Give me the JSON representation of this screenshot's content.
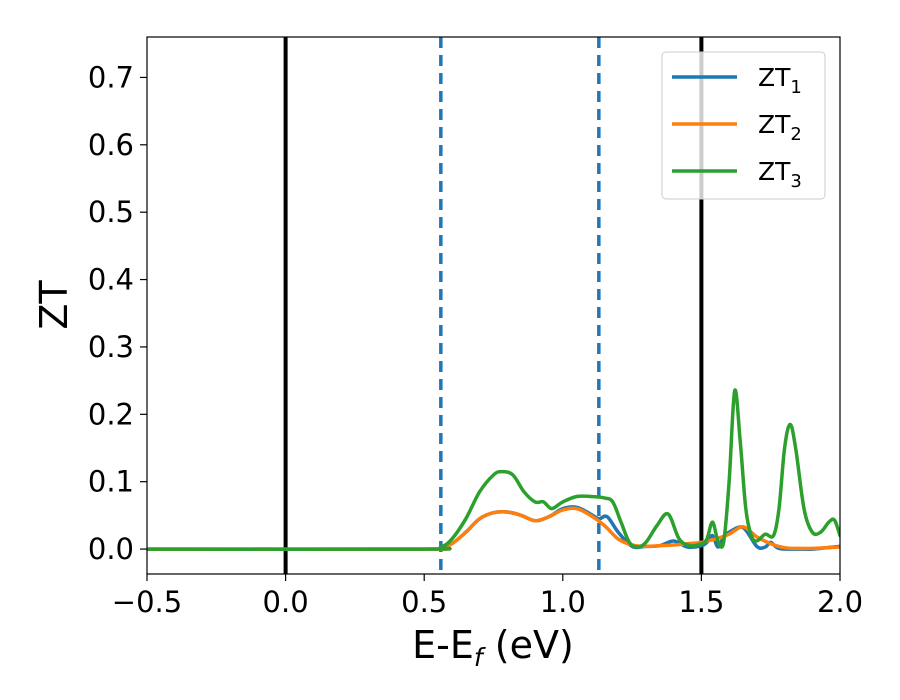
{
  "chart_data": {
    "type": "line",
    "xlabel": {
      "main": "E-E",
      "sub": "f",
      "rest": " (eV)"
    },
    "ylabel": "ZT",
    "xlim": [
      -0.5,
      2.0
    ],
    "ylim": [
      -0.037,
      0.76
    ],
    "x_ticks": [
      -0.5,
      0.0,
      0.5,
      1.0,
      1.5,
      2.0
    ],
    "x_tick_labels": [
      "−0.5",
      "0.0",
      "0.5",
      "1.0",
      "1.5",
      "2.0"
    ],
    "y_ticks": [
      0.0,
      0.1,
      0.2,
      0.3,
      0.4,
      0.5,
      0.6,
      0.7
    ],
    "y_tick_labels": [
      "0.0",
      "0.1",
      "0.2",
      "0.3",
      "0.4",
      "0.5",
      "0.6",
      "0.7"
    ],
    "grid": false,
    "legend_position": "top-right",
    "vertical_lines": [
      {
        "x": 0.0,
        "style": "solid",
        "color": "#000000"
      },
      {
        "x": 0.56,
        "style": "dashed",
        "color": "#1f77b4"
      },
      {
        "x": 1.13,
        "style": "dashed",
        "color": "#1f77b4"
      },
      {
        "x": 1.5,
        "style": "solid",
        "color": "#000000"
      }
    ],
    "series": [
      {
        "name": "ZT",
        "sub": "1",
        "color": "#1f77b4",
        "x": [
          -0.5,
          0.5,
          0.56,
          0.6,
          0.65,
          0.7,
          0.75,
          0.8,
          0.85,
          0.9,
          0.95,
          1.0,
          1.05,
          1.1,
          1.13,
          1.16,
          1.2,
          1.25,
          1.3,
          1.35,
          1.4,
          1.45,
          1.5,
          1.52,
          1.54,
          1.56,
          1.58,
          1.6,
          1.65,
          1.7,
          1.73,
          1.75,
          1.78,
          1.85,
          1.9,
          1.95,
          2.0
        ],
        "y": [
          0.0,
          0.0,
          0.002,
          0.008,
          0.025,
          0.045,
          0.054,
          0.055,
          0.05,
          0.042,
          0.048,
          0.06,
          0.062,
          0.052,
          0.045,
          0.048,
          0.025,
          0.004,
          0.004,
          0.005,
          0.012,
          0.003,
          0.005,
          0.01,
          0.02,
          0.003,
          0.018,
          0.025,
          0.032,
          0.004,
          0.003,
          0.01,
          0.001,
          0.0,
          0.0,
          0.002,
          0.004
        ]
      },
      {
        "name": "ZT",
        "sub": "2",
        "color": "#ff7f0e",
        "x": [
          -0.5,
          0.5,
          0.56,
          0.6,
          0.65,
          0.7,
          0.75,
          0.8,
          0.85,
          0.9,
          0.95,
          1.0,
          1.05,
          1.1,
          1.15,
          1.2,
          1.25,
          1.3,
          1.35,
          1.4,
          1.45,
          1.5,
          1.55,
          1.6,
          1.65,
          1.7,
          1.75,
          1.8,
          1.85,
          1.9,
          1.95,
          2.0
        ],
        "y": [
          0.0,
          0.0,
          0.002,
          0.008,
          0.025,
          0.045,
          0.054,
          0.055,
          0.05,
          0.042,
          0.048,
          0.058,
          0.06,
          0.05,
          0.035,
          0.015,
          0.006,
          0.004,
          0.005,
          0.006,
          0.008,
          0.01,
          0.015,
          0.022,
          0.033,
          0.018,
          0.008,
          0.002,
          0.001,
          0.001,
          0.002,
          0.003
        ]
      },
      {
        "name": "ZT",
        "sub": "3",
        "color": "#2ca02c",
        "x": [
          -0.5,
          0.5,
          0.56,
          0.6,
          0.65,
          0.7,
          0.75,
          0.78,
          0.82,
          0.86,
          0.9,
          0.93,
          0.96,
          1.0,
          1.05,
          1.1,
          1.15,
          1.18,
          1.21,
          1.24,
          1.27,
          1.3,
          1.34,
          1.38,
          1.42,
          1.46,
          1.5,
          1.52,
          1.54,
          1.56,
          1.58,
          1.6,
          1.62,
          1.64,
          1.66,
          1.68,
          1.7,
          1.73,
          1.76,
          1.78,
          1.8,
          1.82,
          1.84,
          1.87,
          1.9,
          1.93,
          1.96,
          1.98,
          2.0
        ],
        "y": [
          0.0,
          0.0,
          0.003,
          0.015,
          0.045,
          0.085,
          0.11,
          0.115,
          0.11,
          0.085,
          0.07,
          0.07,
          0.06,
          0.07,
          0.078,
          0.078,
          0.076,
          0.07,
          0.04,
          0.01,
          0.003,
          0.01,
          0.035,
          0.052,
          0.015,
          0.005,
          0.008,
          0.015,
          0.04,
          0.012,
          0.01,
          0.1,
          0.235,
          0.16,
          0.06,
          0.02,
          0.012,
          0.022,
          0.02,
          0.06,
          0.15,
          0.185,
          0.15,
          0.06,
          0.025,
          0.025,
          0.04,
          0.043,
          0.02
        ]
      }
    ]
  }
}
